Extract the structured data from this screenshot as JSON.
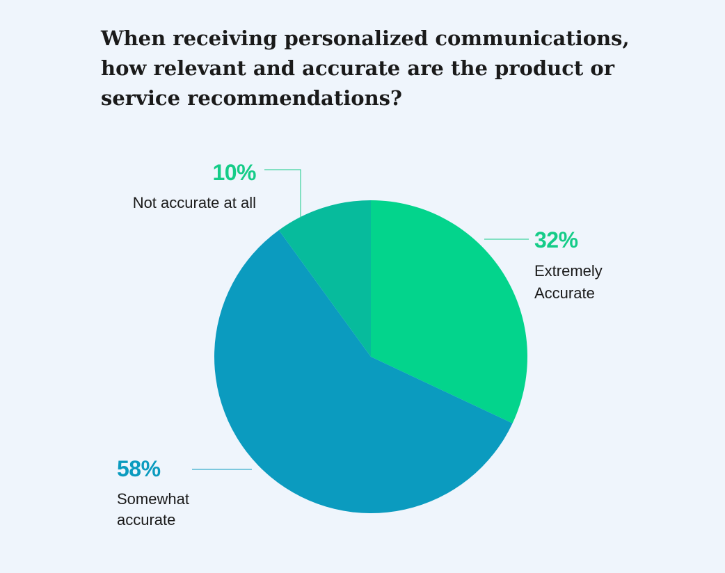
{
  "title_lines": [
    "When receiving personalized communications,",
    "how relevant and accurate are the product or",
    "service recommendations?"
  ],
  "chart_data": {
    "type": "pie",
    "title": "When receiving personalized communications, how relevant and accurate are the product or service recommendations?",
    "slices": [
      {
        "label_lines": [
          "Extremely",
          "Accurate"
        ],
        "value": 32,
        "value_text": "32%",
        "color": "#03d48c",
        "text_color": "#15cc88",
        "anchor": "start"
      },
      {
        "label_lines": [
          "Somewhat",
          "accurate"
        ],
        "value": 58,
        "value_text": "58%",
        "color": "#0b9bbf",
        "text_color": "#0b9bbf",
        "anchor": "start"
      },
      {
        "label_lines": [
          "Not accurate at all"
        ],
        "value": 10,
        "value_text": "10%",
        "color": "#07bb9c",
        "text_color": "#15cc88",
        "anchor": "end"
      }
    ]
  }
}
